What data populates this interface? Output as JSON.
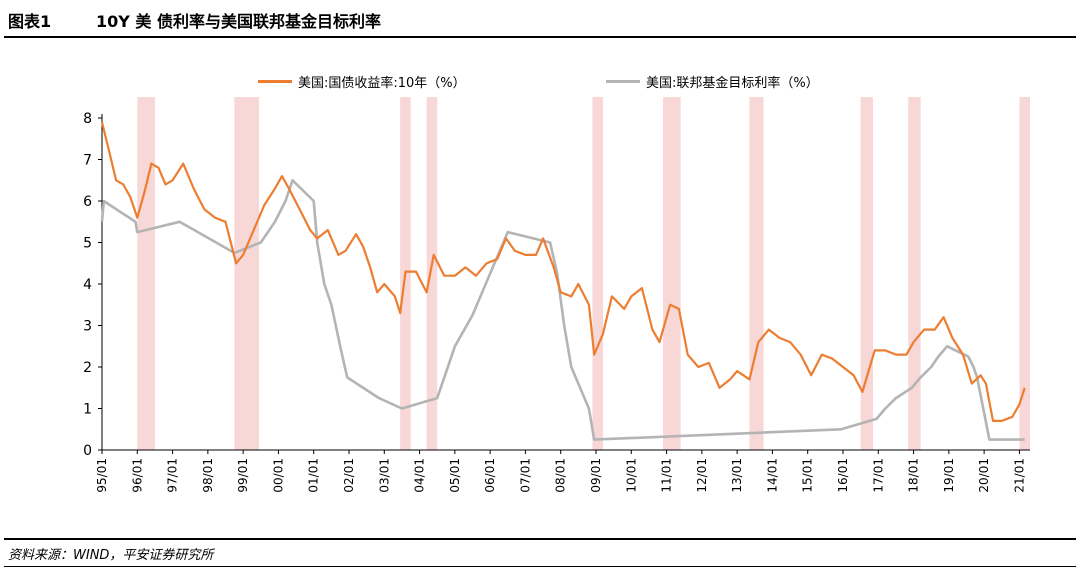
{
  "header": {
    "figure_number": "图表1",
    "title": "10Y 美 债利率与美国联邦基金目标利率"
  },
  "footer": {
    "source": "资料来源：WIND，平安证券研究所"
  },
  "chart_data": {
    "type": "line",
    "title": "10Y 美 债利率与美国联邦基金目标利率",
    "xlabel": "",
    "ylabel": "",
    "ylim": [
      0,
      8
    ],
    "y_ticks": [
      0,
      1,
      2,
      3,
      4,
      5,
      6,
      7,
      8
    ],
    "xlim": [
      1995.0,
      2021.3
    ],
    "x_tick_labels": [
      "95/01",
      "96/01",
      "97/01",
      "98/01",
      "99/01",
      "00/01",
      "01/01",
      "02/01",
      "03/01",
      "04/01",
      "05/01",
      "06/01",
      "07/01",
      "08/01",
      "09/01",
      "10/01",
      "11/01",
      "12/01",
      "13/01",
      "14/01",
      "15/01",
      "16/01",
      "17/01",
      "18/01",
      "19/01",
      "20/01",
      "21/01"
    ],
    "grid": false,
    "legend_position": "top",
    "shaded_periods": [
      [
        1996.0,
        1996.5
      ],
      [
        1998.75,
        1999.45
      ],
      [
        2003.45,
        2003.75
      ],
      [
        2004.2,
        2004.5
      ],
      [
        2008.9,
        2009.2
      ],
      [
        2010.9,
        2011.4
      ],
      [
        2013.35,
        2013.75
      ],
      [
        2016.5,
        2016.85
      ],
      [
        2017.85,
        2018.2
      ],
      [
        2021.0,
        2021.3
      ]
    ],
    "shade_color": "#f8d7d7",
    "series": [
      {
        "name": "美国:国债收益率:10年（%）",
        "color": "#ed7d31",
        "points": [
          [
            1995.0,
            7.9
          ],
          [
            1995.2,
            7.2
          ],
          [
            1995.4,
            6.5
          ],
          [
            1995.6,
            6.4
          ],
          [
            1995.8,
            6.1
          ],
          [
            1996.0,
            5.6
          ],
          [
            1996.2,
            6.2
          ],
          [
            1996.4,
            6.9
          ],
          [
            1996.6,
            6.8
          ],
          [
            1996.8,
            6.4
          ],
          [
            1997.0,
            6.5
          ],
          [
            1997.3,
            6.9
          ],
          [
            1997.6,
            6.3
          ],
          [
            1997.9,
            5.8
          ],
          [
            1998.2,
            5.6
          ],
          [
            1998.5,
            5.5
          ],
          [
            1998.8,
            4.5
          ],
          [
            1999.0,
            4.7
          ],
          [
            1999.3,
            5.3
          ],
          [
            1999.6,
            5.9
          ],
          [
            1999.9,
            6.3
          ],
          [
            2000.1,
            6.6
          ],
          [
            2000.3,
            6.3
          ],
          [
            2000.6,
            5.8
          ],
          [
            2000.9,
            5.3
          ],
          [
            2001.1,
            5.1
          ],
          [
            2001.4,
            5.3
          ],
          [
            2001.7,
            4.7
          ],
          [
            2001.9,
            4.8
          ],
          [
            2002.2,
            5.2
          ],
          [
            2002.4,
            4.9
          ],
          [
            2002.6,
            4.4
          ],
          [
            2002.8,
            3.8
          ],
          [
            2003.0,
            4.0
          ],
          [
            2003.3,
            3.7
          ],
          [
            2003.45,
            3.3
          ],
          [
            2003.6,
            4.3
          ],
          [
            2003.9,
            4.3
          ],
          [
            2004.2,
            3.8
          ],
          [
            2004.4,
            4.7
          ],
          [
            2004.7,
            4.2
          ],
          [
            2005.0,
            4.2
          ],
          [
            2005.3,
            4.4
          ],
          [
            2005.6,
            4.2
          ],
          [
            2005.9,
            4.5
          ],
          [
            2006.2,
            4.6
          ],
          [
            2006.45,
            5.1
          ],
          [
            2006.7,
            4.8
          ],
          [
            2007.0,
            4.7
          ],
          [
            2007.3,
            4.7
          ],
          [
            2007.5,
            5.1
          ],
          [
            2007.8,
            4.4
          ],
          [
            2008.0,
            3.8
          ],
          [
            2008.3,
            3.7
          ],
          [
            2008.5,
            4.0
          ],
          [
            2008.8,
            3.5
          ],
          [
            2008.95,
            2.3
          ],
          [
            2009.2,
            2.8
          ],
          [
            2009.45,
            3.7
          ],
          [
            2009.8,
            3.4
          ],
          [
            2010.0,
            3.7
          ],
          [
            2010.3,
            3.9
          ],
          [
            2010.6,
            2.9
          ],
          [
            2010.8,
            2.6
          ],
          [
            2011.1,
            3.5
          ],
          [
            2011.35,
            3.4
          ],
          [
            2011.6,
            2.3
          ],
          [
            2011.9,
            2.0
          ],
          [
            2012.2,
            2.1
          ],
          [
            2012.5,
            1.5
          ],
          [
            2012.8,
            1.7
          ],
          [
            2013.0,
            1.9
          ],
          [
            2013.35,
            1.7
          ],
          [
            2013.6,
            2.6
          ],
          [
            2013.9,
            2.9
          ],
          [
            2014.2,
            2.7
          ],
          [
            2014.5,
            2.6
          ],
          [
            2014.8,
            2.3
          ],
          [
            2015.1,
            1.8
          ],
          [
            2015.4,
            2.3
          ],
          [
            2015.7,
            2.2
          ],
          [
            2016.0,
            2.0
          ],
          [
            2016.3,
            1.8
          ],
          [
            2016.55,
            1.4
          ],
          [
            2016.9,
            2.4
          ],
          [
            2017.2,
            2.4
          ],
          [
            2017.5,
            2.3
          ],
          [
            2017.8,
            2.3
          ],
          [
            2018.0,
            2.6
          ],
          [
            2018.3,
            2.9
          ],
          [
            2018.6,
            2.9
          ],
          [
            2018.85,
            3.2
          ],
          [
            2019.1,
            2.7
          ],
          [
            2019.4,
            2.3
          ],
          [
            2019.65,
            1.6
          ],
          [
            2019.9,
            1.8
          ],
          [
            2020.05,
            1.6
          ],
          [
            2020.25,
            0.7
          ],
          [
            2020.5,
            0.7
          ],
          [
            2020.8,
            0.8
          ],
          [
            2021.0,
            1.1
          ],
          [
            2021.15,
            1.5
          ]
        ]
      },
      {
        "name": "美国:联邦基金目标利率（%）",
        "color": "#b4b4b4",
        "points": [
          [
            1995.0,
            5.5
          ],
          [
            1995.05,
            6.0
          ],
          [
            1995.5,
            5.75
          ],
          [
            1995.95,
            5.5
          ],
          [
            1996.0,
            5.25
          ],
          [
            1997.2,
            5.5
          ],
          [
            1998.75,
            4.75
          ],
          [
            1999.5,
            5.0
          ],
          [
            1999.9,
            5.5
          ],
          [
            2000.2,
            6.0
          ],
          [
            2000.4,
            6.5
          ],
          [
            2001.0,
            6.0
          ],
          [
            2001.1,
            5.0
          ],
          [
            2001.3,
            4.0
          ],
          [
            2001.5,
            3.5
          ],
          [
            2001.75,
            2.5
          ],
          [
            2001.95,
            1.75
          ],
          [
            2002.85,
            1.25
          ],
          [
            2003.5,
            1.0
          ],
          [
            2004.5,
            1.25
          ],
          [
            2004.7,
            1.75
          ],
          [
            2005.0,
            2.5
          ],
          [
            2005.5,
            3.25
          ],
          [
            2006.0,
            4.25
          ],
          [
            2006.5,
            5.25
          ],
          [
            2007.7,
            5.0
          ],
          [
            2007.9,
            4.25
          ],
          [
            2008.1,
            3.0
          ],
          [
            2008.3,
            2.0
          ],
          [
            2008.8,
            1.0
          ],
          [
            2008.95,
            0.25
          ],
          [
            2015.95,
            0.5
          ],
          [
            2016.95,
            0.75
          ],
          [
            2017.2,
            1.0
          ],
          [
            2017.5,
            1.25
          ],
          [
            2017.95,
            1.5
          ],
          [
            2018.2,
            1.75
          ],
          [
            2018.5,
            2.0
          ],
          [
            2018.7,
            2.25
          ],
          [
            2018.95,
            2.5
          ],
          [
            2019.55,
            2.25
          ],
          [
            2019.7,
            2.0
          ],
          [
            2019.8,
            1.75
          ],
          [
            2020.15,
            0.25
          ],
          [
            2021.15,
            0.25
          ]
        ]
      }
    ]
  }
}
